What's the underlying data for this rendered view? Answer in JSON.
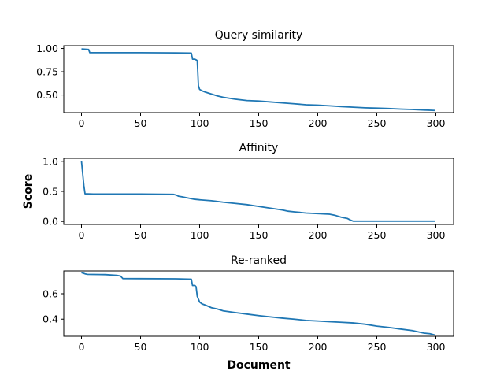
{
  "chart_data": [
    {
      "type": "line",
      "title": "Query similarity",
      "xlabel": "",
      "ylabel": "",
      "xlim": [
        -15,
        315
      ],
      "ylim": [
        0.31,
        1.03
      ],
      "xticks": [
        0,
        50,
        100,
        150,
        200,
        250,
        300
      ],
      "yticks": [
        0.5,
        0.75,
        1.0
      ],
      "ytick_labels": [
        "0.50",
        "0.75",
        "1.00"
      ],
      "grid": false,
      "color": "#1f77b4",
      "x": [
        0,
        6,
        7,
        50,
        80,
        93,
        94,
        96,
        97,
        98,
        99,
        100,
        102,
        105,
        110,
        115,
        120,
        130,
        140,
        150,
        160,
        170,
        180,
        190,
        200,
        210,
        220,
        230,
        240,
        250,
        260,
        270,
        280,
        290,
        299
      ],
      "y": [
        0.995,
        0.99,
        0.955,
        0.955,
        0.953,
        0.95,
        0.885,
        0.885,
        0.878,
        0.87,
        0.6,
        0.56,
        0.545,
        0.53,
        0.51,
        0.49,
        0.475,
        0.455,
        0.44,
        0.435,
        0.425,
        0.415,
        0.405,
        0.395,
        0.39,
        0.383,
        0.375,
        0.368,
        0.362,
        0.358,
        0.354,
        0.348,
        0.344,
        0.338,
        0.333
      ]
    },
    {
      "type": "line",
      "title": "Affinity",
      "xlabel": "",
      "ylabel": "Score",
      "xlim": [
        -15,
        315
      ],
      "ylim": [
        -0.05,
        1.05
      ],
      "xticks": [
        0,
        50,
        100,
        150,
        200,
        250,
        300
      ],
      "yticks": [
        0.0,
        0.5,
        1.0
      ],
      "ytick_labels": [
        "0.0",
        "0.5",
        "1.0"
      ],
      "grid": false,
      "color": "#1f77b4",
      "x": [
        0,
        2,
        3,
        10,
        30,
        50,
        78,
        80,
        82,
        85,
        90,
        95,
        100,
        110,
        120,
        130,
        140,
        150,
        160,
        170,
        175,
        180,
        190,
        200,
        210,
        215,
        220,
        225,
        228,
        230,
        240,
        260,
        280,
        299
      ],
      "y": [
        1.0,
        0.6,
        0.46,
        0.455,
        0.455,
        0.455,
        0.45,
        0.44,
        0.42,
        0.41,
        0.39,
        0.37,
        0.36,
        0.345,
        0.32,
        0.3,
        0.28,
        0.25,
        0.22,
        0.19,
        0.17,
        0.16,
        0.14,
        0.13,
        0.12,
        0.1,
        0.07,
        0.05,
        0.02,
        0.005,
        0.005,
        0.005,
        0.005,
        0.005
      ]
    },
    {
      "type": "line",
      "title": "Re-ranked",
      "xlabel": "Document",
      "ylabel": "",
      "xlim": [
        -15,
        315
      ],
      "ylim": [
        0.265,
        0.78
      ],
      "xticks": [
        0,
        50,
        100,
        150,
        200,
        250,
        300
      ],
      "yticks": [
        0.4,
        0.6
      ],
      "ytick_labels": [
        "0.4",
        "0.6"
      ],
      "grid": false,
      "color": "#1f77b4",
      "x": [
        0,
        3,
        5,
        10,
        20,
        30,
        33,
        34,
        35,
        50,
        80,
        93,
        94,
        96,
        97,
        98,
        100,
        102,
        105,
        110,
        115,
        120,
        130,
        140,
        150,
        160,
        170,
        180,
        190,
        200,
        210,
        220,
        230,
        240,
        250,
        260,
        270,
        280,
        285,
        290,
        295,
        299
      ],
      "y": [
        0.767,
        0.757,
        0.753,
        0.752,
        0.751,
        0.745,
        0.74,
        0.73,
        0.72,
        0.719,
        0.718,
        0.715,
        0.665,
        0.665,
        0.655,
        0.58,
        0.535,
        0.52,
        0.51,
        0.49,
        0.48,
        0.465,
        0.452,
        0.44,
        0.428,
        0.418,
        0.408,
        0.4,
        0.39,
        0.385,
        0.38,
        0.375,
        0.37,
        0.36,
        0.345,
        0.335,
        0.322,
        0.31,
        0.3,
        0.29,
        0.285,
        0.275
      ]
    }
  ]
}
